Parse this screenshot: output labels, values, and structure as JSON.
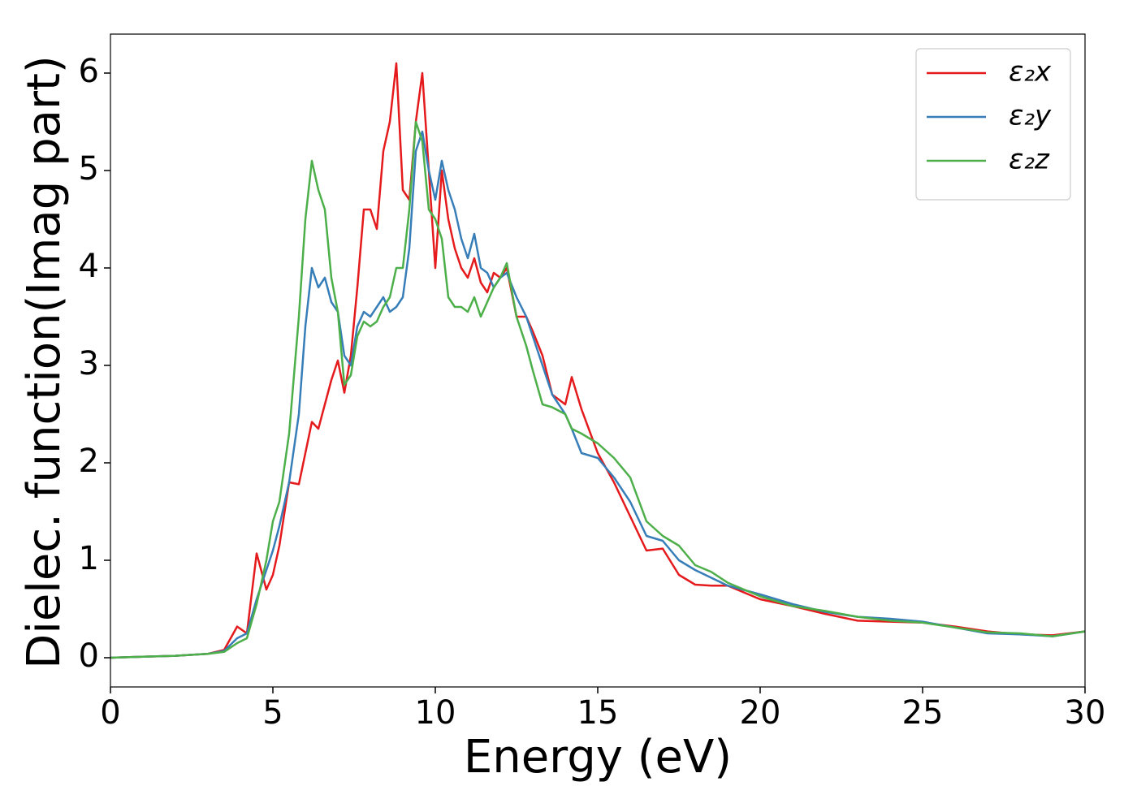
{
  "chart_data": {
    "type": "line",
    "xlabel": "Energy (eV)",
    "ylabel": "Dielec. function(Imag part)",
    "x": [
      0,
      1,
      2,
      3,
      3.5,
      3.9,
      4.2,
      4.5,
      4.8,
      5,
      5.2,
      5.5,
      5.8,
      6,
      6.2,
      6.4,
      6.6,
      6.8,
      7,
      7.2,
      7.4,
      7.6,
      7.8,
      8,
      8.2,
      8.4,
      8.6,
      8.8,
      9,
      9.2,
      9.4,
      9.6,
      9.8,
      10,
      10.2,
      10.4,
      10.6,
      10.8,
      11,
      11.2,
      11.4,
      11.6,
      11.8,
      12,
      12.2,
      12.5,
      12.8,
      13,
      13.3,
      13.6,
      14,
      14.2,
      14.5,
      15,
      15.5,
      16,
      16.5,
      17,
      17.5,
      18,
      18.5,
      19,
      20,
      21,
      22,
      23,
      24,
      25,
      26,
      27,
      28,
      29,
      30
    ],
    "series": [
      {
        "name": "ε₂x",
        "color": "#e41a1c",
        "values": [
          0,
          0.01,
          0.02,
          0.04,
          0.08,
          0.32,
          0.25,
          1.07,
          0.7,
          0.85,
          1.15,
          1.8,
          1.78,
          2.1,
          2.42,
          2.35,
          2.6,
          2.85,
          3.05,
          2.72,
          3.1,
          3.8,
          4.6,
          4.6,
          4.4,
          5.2,
          5.5,
          6.1,
          4.8,
          4.7,
          5.5,
          6.0,
          5.0,
          4.0,
          5.0,
          4.5,
          4.2,
          4.0,
          3.9,
          4.1,
          3.85,
          3.75,
          3.95,
          3.9,
          4.0,
          3.5,
          3.5,
          3.35,
          3.1,
          2.7,
          2.6,
          2.88,
          2.55,
          2.1,
          1.8,
          1.45,
          1.1,
          1.12,
          0.85,
          0.75,
          0.74,
          0.74,
          0.6,
          0.53,
          0.45,
          0.38,
          0.37,
          0.36,
          0.32,
          0.27,
          0.24,
          0.23,
          0.27
        ]
      },
      {
        "name": "ε₂y",
        "color": "#377eb8",
        "values": [
          0,
          0.01,
          0.02,
          0.04,
          0.07,
          0.2,
          0.25,
          0.6,
          0.9,
          1.1,
          1.35,
          1.8,
          2.5,
          3.4,
          4.0,
          3.8,
          3.9,
          3.65,
          3.55,
          3.1,
          3.0,
          3.4,
          3.55,
          3.5,
          3.6,
          3.7,
          3.55,
          3.6,
          3.7,
          4.2,
          5.2,
          5.4,
          5.0,
          4.7,
          5.1,
          4.8,
          4.6,
          4.3,
          4.1,
          4.35,
          4.0,
          3.95,
          3.8,
          3.9,
          3.95,
          3.7,
          3.5,
          3.3,
          3.0,
          2.7,
          2.5,
          2.35,
          2.1,
          2.05,
          1.85,
          1.6,
          1.25,
          1.2,
          1.0,
          0.9,
          0.82,
          0.74,
          0.65,
          0.55,
          0.47,
          0.42,
          0.4,
          0.37,
          0.31,
          0.25,
          0.24,
          0.22,
          0.27
        ]
      },
      {
        "name": "ε₂z",
        "color": "#4daf4a",
        "values": [
          0,
          0.01,
          0.02,
          0.04,
          0.06,
          0.15,
          0.2,
          0.55,
          1.0,
          1.4,
          1.6,
          2.3,
          3.5,
          4.5,
          5.1,
          4.8,
          4.6,
          3.9,
          3.55,
          2.8,
          2.9,
          3.3,
          3.45,
          3.4,
          3.45,
          3.6,
          3.7,
          4.0,
          4.0,
          4.6,
          5.5,
          5.3,
          4.6,
          4.5,
          4.3,
          3.7,
          3.6,
          3.6,
          3.55,
          3.7,
          3.5,
          3.65,
          3.8,
          3.9,
          4.05,
          3.5,
          3.2,
          2.95,
          2.6,
          2.57,
          2.5,
          2.35,
          2.3,
          2.2,
          2.05,
          1.85,
          1.4,
          1.25,
          1.15,
          0.95,
          0.88,
          0.77,
          0.63,
          0.53,
          0.48,
          0.42,
          0.38,
          0.36,
          0.31,
          0.26,
          0.25,
          0.22,
          0.27
        ]
      }
    ],
    "xlim": [
      0,
      30
    ],
    "xticks": [
      0,
      5,
      10,
      15,
      20,
      25,
      30
    ],
    "ylim": [
      -0.3,
      6.4
    ],
    "yticks": [
      0,
      1,
      2,
      3,
      4,
      5,
      6
    ],
    "legend": "upper right"
  }
}
